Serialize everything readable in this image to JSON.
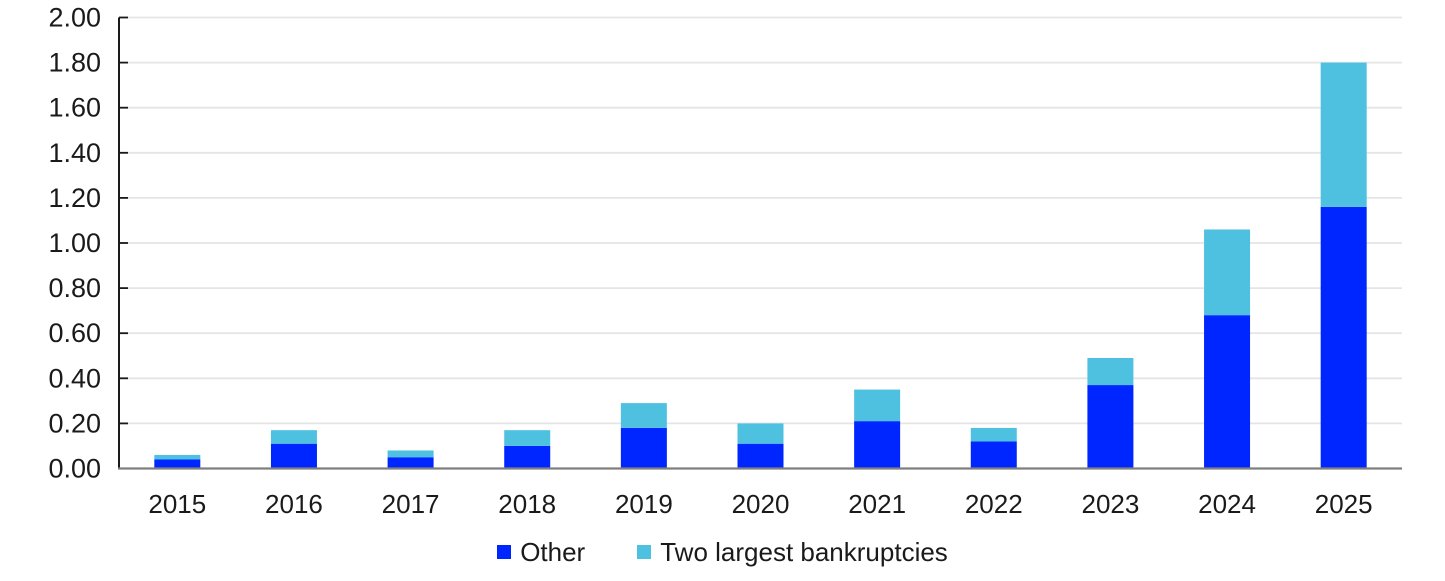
{
  "chart_data": {
    "type": "bar",
    "stacked": true,
    "categories": [
      "2015",
      "2016",
      "2017",
      "2018",
      "2019",
      "2020",
      "2021",
      "2022",
      "2023",
      "2024",
      "2025"
    ],
    "series": [
      {
        "name": "Other",
        "color": "#0026FF",
        "values": [
          0.04,
          0.11,
          0.05,
          0.1,
          0.18,
          0.11,
          0.21,
          0.12,
          0.37,
          0.68,
          1.16
        ]
      },
      {
        "name": "Two largest bankruptcies",
        "color": "#4EC1E1",
        "values": [
          0.02,
          0.06,
          0.03,
          0.07,
          0.11,
          0.09,
          0.14,
          0.06,
          0.12,
          0.38,
          0.64
        ]
      }
    ],
    "title": "",
    "xlabel": "",
    "ylabel": "",
    "ylim": [
      0,
      2.0
    ],
    "ytick_step": 0.2,
    "ytick_labels": [
      "0.00",
      "0.20",
      "0.40",
      "0.60",
      "0.80",
      "1.00",
      "1.20",
      "1.40",
      "1.60",
      "1.80",
      "2.00"
    ],
    "grid": true,
    "legend_position": "bottom"
  },
  "legend": {
    "items": [
      {
        "label": "Other",
        "color": "#0026FF"
      },
      {
        "label": "Two largest bankruptcies",
        "color": "#4EC1E1"
      }
    ]
  },
  "colors": {
    "background": "#FFFFFF",
    "gridline": "#E5E5E5",
    "y_axis_line": "#1A1A1A",
    "x_axis_line": "#7F7F7F",
    "tick": "#1A1A1A",
    "text": "#1A1A1A"
  }
}
